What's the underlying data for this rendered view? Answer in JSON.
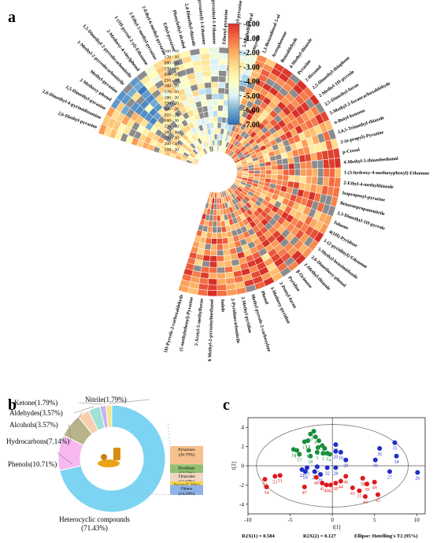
{
  "panels": {
    "a": "a",
    "b": "b",
    "c": "c"
  },
  "chart_data": [
    {
      "type": "heatmap",
      "layout": "circular",
      "colorbar": {
        "ticks": [
          "-0.00",
          "-1.00",
          "-2.00",
          "-3.00",
          "-4.00",
          "-5.00",
          "-6.00",
          "-7.00"
        ],
        "min": -7,
        "max": 0,
        "colors": [
          "#d73027",
          "#f46d43",
          "#fdae61",
          "#fee090",
          "#ffffbf",
          "#e0f3f8",
          "#74add1",
          "#2b6cb6"
        ]
      },
      "rows": [
        "210 - 30",
        "200 - 30",
        "190 - 30",
        "180 - 30",
        "170 - 30",
        "160 - 30",
        "210 - 20",
        "200 - 20",
        "190 - 20",
        "180 - 20",
        "170 - 20",
        "160 - 20",
        "210 - 10",
        "200 - 10",
        "190 - 10",
        "180 - 10",
        "170 - 10",
        "160 - 10"
      ],
      "compounds": [
        "2,6-Diethyl-pyrazine",
        "2,6-Dimethyl-4-pyrimidinamine",
        "2,5-Dimethyl-pyrazine",
        "2-Methoxy-phenol",
        "Methyl-pyrazine",
        "1-Methyl-2-pyrrolecarbonitrile",
        "1,5-Dimethyl-2-pyrrolecarbonitrile",
        "2-Methoxy-4-vinylphenol",
        "1-(1H-pyrrol-2-yl)-Ethanone",
        "2-Ethyl-5-methyl-pyrazine",
        "2-Ethyl-6-methyl-pyrazine",
        "Ethyl-pyrazine",
        "Phenylethyl alcohol",
        "2,4-Dimethyl-thiazole",
        "1-(5-methyl-2-pyrazinyl)-1-Ethanone",
        "3-Methyl-2-pyrazinyl-1-Ethanone",
        "Ethenyl-pyrazine",
        "2,3-Dimethyl-pyrazine",
        "5-Methylfurfural",
        "Styrene",
        "1,3-Benzodioxol-5-ol",
        "Acetophenone",
        "Benzaldehyde",
        "4-Methyl-thiazole",
        "Pyrazine",
        "2-Hexanol",
        "2,5-Dimethyl-thiophene",
        "2-Methyl-1H-pyrrole",
        "2,5-Dimethyl-furan",
        "5-Methyl-2-furancarboxaldehyde",
        "n-Butyl-benzene",
        "2,4,5-Trimethyl-thiazole",
        "2-(n-propyl)-Pyrazine",
        "p-Cresol",
        "4-Methyl-5-thiazoleethanol",
        "1-(3-hydroxy-4-methoxyphenyl)-Ethanone",
        "2-Ethyl-4-methylthiazole",
        "Isopropenyl-pyrazine",
        "Benzenepropanenitrile",
        "2,3-Dimethyl-1H-pyrrole",
        "Toluene",
        "4(1H)-Pyridone",
        "1-(2-pyridinyl)-Ethanone",
        "5-Methyl-benzimidazole",
        "2,6-Dimethoxy-phenol",
        "2-Methyl-thiazole",
        "β-Ocimene",
        "Pyridine",
        "2-Pentyl-furan",
        "3-Methoxy-pyridine",
        "Phenol",
        "Methyl pyrrole-2-carboxylate",
        "2-Methyl-pyridine",
        "2-Pyridinecarbonitrile",
        "Indole",
        "6-Methyl-2-pyrazinylmethanol",
        "2-Acetyl-5-methylfuran",
        "(1-methylethenyl)-Pyrazine",
        "1H-Pyrrole-2-carboxaldehyde"
      ]
    },
    {
      "type": "pie",
      "style": "donut",
      "slices": [
        {
          "label": "Heterocyclic compounds",
          "value": 71.43,
          "text": "Heterocyclic compounds\n(71.43%)",
          "color": "#7dd3f2"
        },
        {
          "label": "Phenols",
          "value": 10.71,
          "text": "Phenols(10.71%)",
          "color": "#f7b8f0"
        },
        {
          "label": "Hydrocarbons",
          "value": 7.14,
          "text": "Hydrocarbons(7.14%)",
          "color": "#b7b48a"
        },
        {
          "label": "Alcohols",
          "value": 3.57,
          "text": "Alcohols(3.57%)",
          "color": "#f9cfae"
        },
        {
          "label": "Aldehydes",
          "value": 3.57,
          "text": "Aldehydes(3.57%)",
          "color": "#9fe1d3"
        },
        {
          "label": "Ketone",
          "value": 1.79,
          "text": "Ketone(1.79%)",
          "color": "#c9b3f0"
        },
        {
          "label": "Nitrile",
          "value": 1.79,
          "text": "Nitrile(1.79%)",
          "color": "#f0e68c"
        }
      ],
      "breakdown": [
        {
          "label": "Pyrazines\n(26.79%)",
          "value": 26.79,
          "color": "#f7c18f"
        },
        {
          "label": "Pyridines\n(12.50%)",
          "value": 12.5,
          "color": "#8fbf73"
        },
        {
          "label": "Thiazoles\n(12.50%)",
          "value": 12.5,
          "color": "#f1d6c0"
        },
        {
          "label": "Furans(5.36%)",
          "value": 5.36,
          "color": "#f3d34a"
        },
        {
          "label": "Others\n(14.29%)",
          "value": 14.29,
          "color": "#8fb3e6"
        }
      ]
    },
    {
      "type": "scatter",
      "xlabel": "t[1]",
      "ylabel": "t[2]",
      "xlim": [
        -10,
        11
      ],
      "ylim": [
        -5,
        5
      ],
      "xticks": [
        -10,
        -5,
        0,
        5,
        10
      ],
      "yticks": [
        -4,
        -2,
        0,
        2,
        4
      ],
      "ellipse": "Hotelling's T2 (95%)",
      "footer": [
        "R2X(1) = 0.584",
        "R2X(2) = 0.127",
        "Ellipse: Hotelling's T2 (95%)"
      ],
      "groups": [
        {
          "color": "#1a8f3a",
          "points": [
            {
              "id": "11",
              "x": -2.2,
              "y": 3.6
            },
            {
              "id": "10",
              "x": -2.6,
              "y": 3.3
            },
            {
              "id": "9",
              "x": -2.0,
              "y": 3.0
            },
            {
              "id": "13",
              "x": -3.3,
              "y": 2.5
            },
            {
              "id": "14",
              "x": -2.9,
              "y": 2.6
            },
            {
              "id": "8",
              "x": -1.6,
              "y": 2.6
            },
            {
              "id": "7",
              "x": -1.2,
              "y": 2.1
            },
            {
              "id": "16",
              "x": -4.6,
              "y": 1.7
            },
            {
              "id": "15",
              "x": -4.2,
              "y": 1.6
            },
            {
              "id": "12",
              "x": -2.8,
              "y": 1.6
            },
            {
              "id": "17",
              "x": -3.9,
              "y": 1.2
            },
            {
              "id": "18",
              "x": -2.6,
              "y": 1.0
            },
            {
              "id": "5",
              "x": -1.7,
              "y": 1.9
            },
            {
              "id": "6",
              "x": -0.9,
              "y": 1.8
            },
            {
              "id": "1",
              "x": -1.1,
              "y": 1.3
            },
            {
              "id": "2",
              "x": -0.6,
              "y": 1.3
            },
            {
              "id": "3",
              "x": -1.8,
              "y": 1.4
            },
            {
              "id": "4",
              "x": -0.3,
              "y": 1.2
            }
          ]
        },
        {
          "color": "#1f2fc8",
          "points": [
            {
              "id": "25",
              "x": 0.4,
              "y": 2.2
            },
            {
              "id": "35",
              "x": 7.4,
              "y": 2.4
            },
            {
              "id": "36",
              "x": 5.6,
              "y": 1.8
            },
            {
              "id": "34",
              "x": 7.6,
              "y": 1.0
            },
            {
              "id": "20",
              "x": 0.4,
              "y": 1.5
            },
            {
              "id": "19",
              "x": 1.0,
              "y": 1.4
            },
            {
              "id": "29",
              "x": 1.6,
              "y": 0.6
            },
            {
              "id": "30",
              "x": 5.1,
              "y": 0.6
            },
            {
              "id": "22",
              "x": -3.6,
              "y": -0.4
            },
            {
              "id": "24",
              "x": -3.2,
              "y": -0.6
            },
            {
              "id": "33",
              "x": -1.8,
              "y": -0.1
            },
            {
              "id": "21",
              "x": -2.1,
              "y": -0.6
            },
            {
              "id": "32",
              "x": -0.6,
              "y": -0.2
            },
            {
              "id": "28",
              "x": 0.4,
              "y": -0.2
            },
            {
              "id": "31",
              "x": -1.4,
              "y": -0.9
            },
            {
              "id": "27",
              "x": 6.8,
              "y": -0.6
            },
            {
              "id": "26",
              "x": 10.1,
              "y": -0.7
            },
            {
              "id": "23",
              "x": -3.0,
              "y": -0.2
            }
          ]
        },
        {
          "color": "#e0191b",
          "points": [
            {
              "id": "52",
              "x": -8.0,
              "y": -1.4
            },
            {
              "id": "53",
              "x": -6.8,
              "y": -1.1
            },
            {
              "id": "51",
              "x": -6.2,
              "y": -1.0
            },
            {
              "id": "54",
              "x": -7.8,
              "y": -2.2
            },
            {
              "id": "48",
              "x": -1.9,
              "y": -1.2
            },
            {
              "id": "46",
              "x": 1.6,
              "y": -1.1
            },
            {
              "id": "38",
              "x": 3.6,
              "y": -1.3
            },
            {
              "id": "41",
              "x": -1.2,
              "y": -1.8
            },
            {
              "id": "40",
              "x": -0.7,
              "y": -2.0
            },
            {
              "id": "42",
              "x": -0.2,
              "y": -2.0
            },
            {
              "id": "50",
              "x": 0.4,
              "y": -1.8
            },
            {
              "id": "47",
              "x": -3.3,
              "y": -2.2
            },
            {
              "id": "44",
              "x": 1.0,
              "y": -1.6
            },
            {
              "id": "49",
              "x": 5.0,
              "y": -1.7
            },
            {
              "id": "39",
              "x": 4.1,
              "y": -1.9
            },
            {
              "id": "43",
              "x": 2.4,
              "y": -2.3
            },
            {
              "id": "37",
              "x": 3.2,
              "y": -2.6
            },
            {
              "id": "45",
              "x": 5.4,
              "y": -3.0
            },
            {
              "id": "44b",
              "x": 3.9,
              "y": -3.2
            }
          ]
        }
      ]
    }
  ]
}
